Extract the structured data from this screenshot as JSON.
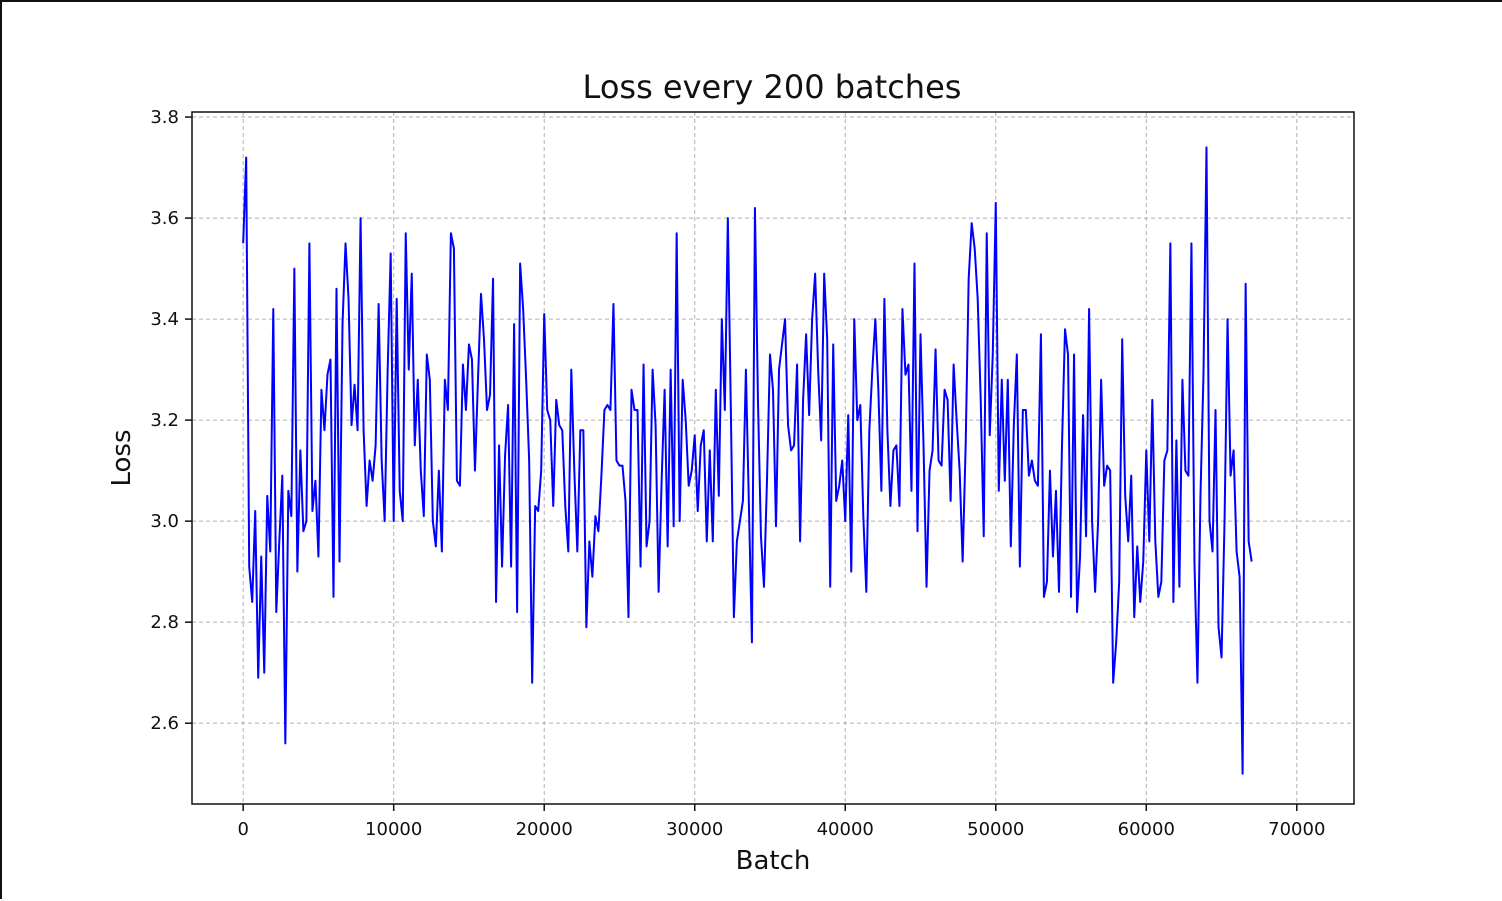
{
  "chart_data": {
    "type": "line",
    "title": "Loss every 200 batches",
    "xlabel": "Batch",
    "ylabel": "Loss",
    "xlim": [
      -3400,
      73800
    ],
    "ylim": [
      2.44,
      3.81
    ],
    "x_ticks": [
      0,
      10000,
      20000,
      30000,
      40000,
      50000,
      60000,
      70000
    ],
    "y_ticks": [
      2.6,
      2.8,
      3.0,
      3.2,
      3.4,
      3.6,
      3.8
    ],
    "grid": true,
    "line_color": "#0000ff",
    "series": [
      {
        "x_start": 0,
        "x_step": 200,
        "values": [
          3.55,
          3.72,
          2.91,
          2.84,
          3.02,
          2.69,
          2.93,
          2.7,
          3.05,
          2.94,
          3.42,
          2.82,
          2.96,
          3.09,
          2.56,
          3.06,
          3.01,
          3.5,
          2.9,
          3.14,
          2.98,
          3.0,
          3.55,
          3.02,
          3.08,
          2.93,
          3.26,
          3.18,
          3.29,
          3.32,
          2.85,
          3.46,
          2.92,
          3.39,
          3.55,
          3.44,
          3.19,
          3.27,
          3.18,
          3.6,
          3.18,
          3.03,
          3.12,
          3.08,
          3.15,
          3.43,
          3.12,
          3.0,
          3.3,
          3.53,
          3.0,
          3.44,
          3.06,
          3.0,
          3.57,
          3.3,
          3.49,
          3.15,
          3.28,
          3.1,
          3.01,
          3.33,
          3.28,
          3.0,
          2.95,
          3.1,
          2.94,
          3.28,
          3.22,
          3.57,
          3.54,
          3.08,
          3.07,
          3.31,
          3.22,
          3.35,
          3.32,
          3.1,
          3.28,
          3.45,
          3.36,
          3.22,
          3.25,
          3.48,
          2.84,
          3.15,
          2.91,
          3.13,
          3.23,
          2.91,
          3.39,
          2.82,
          3.51,
          3.42,
          3.28,
          3.12,
          2.68,
          3.03,
          3.02,
          3.1,
          3.41,
          3.22,
          3.2,
          3.03,
          3.24,
          3.19,
          3.18,
          3.03,
          2.94,
          3.3,
          3.1,
          2.94,
          3.18,
          3.18,
          2.79,
          2.96,
          2.89,
          3.01,
          2.98,
          3.09,
          3.22,
          3.23,
          3.22,
          3.43,
          3.12,
          3.11,
          3.11,
          3.04,
          2.81,
          3.26,
          3.22,
          3.22,
          2.91,
          3.31,
          2.95,
          3.0,
          3.3,
          3.19,
          2.86,
          3.08,
          3.26,
          2.95,
          3.3,
          2.99,
          3.57,
          3.0,
          3.28,
          3.2,
          3.07,
          3.1,
          3.17,
          3.02,
          3.15,
          3.18,
          2.96,
          3.14,
          2.96,
          3.26,
          3.05,
          3.4,
          3.22,
          3.6,
          3.22,
          2.81,
          2.96,
          3.0,
          3.04,
          3.3,
          3.03,
          2.76,
          3.62,
          3.24,
          2.97,
          2.87,
          3.08,
          3.33,
          3.26,
          2.99,
          3.3,
          3.35,
          3.4,
          3.19,
          3.14,
          3.15,
          3.31,
          2.96,
          3.24,
          3.37,
          3.21,
          3.4,
          3.49,
          3.3,
          3.16,
          3.49,
          3.36,
          2.87,
          3.35,
          3.04,
          3.07,
          3.12,
          3.0,
          3.21,
          2.9,
          3.4,
          3.2,
          3.23,
          3.01,
          2.86,
          3.18,
          3.3,
          3.4,
          3.26,
          3.06,
          3.44,
          3.18,
          3.03,
          3.14,
          3.15,
          3.03,
          3.42,
          3.29,
          3.31,
          3.06,
          3.51,
          2.98,
          3.37,
          3.15,
          2.87,
          3.1,
          3.14,
          3.34,
          3.12,
          3.11,
          3.26,
          3.24,
          3.04,
          3.31,
          3.2,
          3.1,
          2.92,
          3.15,
          3.48,
          3.59,
          3.54,
          3.44,
          3.24,
          2.97,
          3.57,
          3.17,
          3.33,
          3.63,
          3.06,
          3.28,
          3.08,
          3.28,
          2.95,
          3.19,
          3.33,
          2.91,
          3.22,
          3.22,
          3.09,
          3.12,
          3.08,
          3.07,
          3.37,
          2.85,
          2.88,
          3.1,
          2.93,
          3.06,
          2.86,
          3.15,
          3.38,
          3.33,
          2.85,
          3.33,
          2.82,
          2.93,
          3.21,
          2.97,
          3.42,
          3.0,
          2.86,
          3.0,
          3.28,
          3.07,
          3.11,
          3.1,
          2.68,
          2.76,
          2.88,
          3.36,
          3.05,
          2.96,
          3.09,
          2.81,
          2.95,
          2.84,
          2.92,
          3.14,
          2.96,
          3.24,
          2.96,
          2.85,
          2.88,
          3.12,
          3.14,
          3.55,
          2.84,
          3.16,
          2.87,
          3.28,
          3.1,
          3.09,
          3.55,
          2.92,
          2.68,
          3.05,
          3.29,
          3.74,
          3.0,
          2.94,
          3.22,
          2.79,
          2.73,
          3.0,
          3.4,
          3.09,
          3.14,
          2.94,
          2.89,
          2.5,
          3.47,
          2.96,
          2.92
        ]
      }
    ]
  }
}
